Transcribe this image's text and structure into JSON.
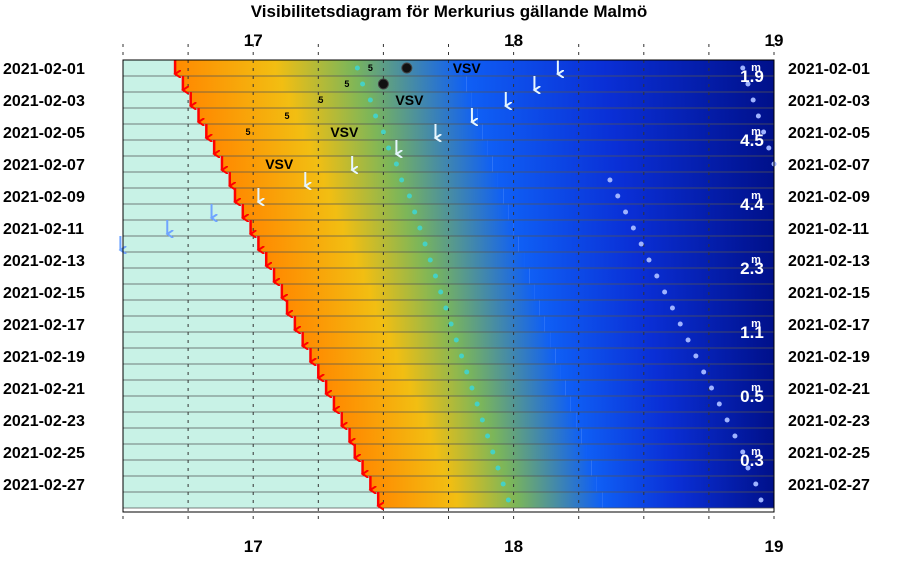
{
  "chart_data": {
    "type": "scatter",
    "title": "Visibilitetsdiagram för Merkurius gällande Malmö",
    "x_ticks": [
      "17",
      "18",
      "19"
    ],
    "x_range": [
      16.5,
      19.0
    ],
    "dates": [
      "2021-02-01",
      "2021-02-02",
      "2021-02-03",
      "2021-02-04",
      "2021-02-05",
      "2021-02-06",
      "2021-02-07",
      "2021-02-08",
      "2021-02-09",
      "2021-02-10",
      "2021-02-11",
      "2021-02-12",
      "2021-02-13",
      "2021-02-14",
      "2021-02-15",
      "2021-02-16",
      "2021-02-17",
      "2021-02-18",
      "2021-02-19",
      "2021-02-20",
      "2021-02-21",
      "2021-02-22",
      "2021-02-23",
      "2021-02-24",
      "2021-02-25",
      "2021-02-26",
      "2021-02-27",
      "2021-02-28"
    ],
    "date_labels": [
      "2021-02-01",
      "2021-02-03",
      "2021-02-05",
      "2021-02-07",
      "2021-02-09",
      "2021-02-11",
      "2021-02-13",
      "2021-02-15",
      "2021-02-17",
      "2021-02-19",
      "2021-02-21",
      "2021-02-23",
      "2021-02-25",
      "2021-02-27"
    ],
    "sunset": [
      16.7,
      16.73,
      16.76,
      16.79,
      16.82,
      16.85,
      16.88,
      16.91,
      16.93,
      16.96,
      16.99,
      17.02,
      17.05,
      17.08,
      17.11,
      17.13,
      17.16,
      17.19,
      17.22,
      17.25,
      17.28,
      17.31,
      17.34,
      17.37,
      17.39,
      17.42,
      17.45,
      17.48
    ],
    "dusk": [
      17.8,
      17.82,
      17.84,
      17.86,
      17.88,
      17.9,
      17.92,
      17.94,
      17.96,
      17.98,
      18.0,
      18.02,
      18.04,
      18.06,
      18.08,
      18.1,
      18.12,
      18.14,
      18.16,
      18.18,
      18.2,
      18.22,
      18.24,
      18.26,
      18.28,
      18.3,
      18.32,
      18.34
    ],
    "night": [
      18.33,
      18.35,
      18.37,
      18.39,
      18.41,
      18.43,
      18.45,
      18.47,
      18.49,
      18.51,
      18.53,
      18.55,
      18.57,
      18.59,
      18.61,
      18.63,
      18.65,
      18.67,
      18.69,
      18.71,
      18.73,
      18.75,
      18.77,
      18.79,
      18.81,
      18.83,
      18.85,
      18.87
    ],
    "inner_dots": [
      17.4,
      17.42,
      17.45,
      17.47,
      17.5,
      17.52,
      17.55,
      17.57,
      17.6,
      17.62,
      17.64,
      17.66,
      17.68,
      17.7,
      17.72,
      17.74,
      17.76,
      17.78,
      17.8,
      17.82,
      17.84,
      17.86,
      17.88,
      17.9,
      17.92,
      17.94,
      17.96,
      17.98
    ],
    "outer_dots": [
      18.88,
      18.9,
      18.92,
      18.94,
      18.96,
      18.98,
      19.0,
      18.37,
      18.4,
      18.43,
      18.46,
      18.49,
      18.52,
      18.55,
      18.58,
      18.61,
      18.64,
      18.67,
      18.7,
      18.73,
      18.76,
      18.79,
      18.82,
      18.85,
      18.88,
      18.9,
      18.93,
      18.95
    ],
    "mercury_set_arrows": [
      {
        "day": 0,
        "x": 18.17
      },
      {
        "day": 1,
        "x": 18.08
      },
      {
        "day": 2,
        "x": 17.97
      },
      {
        "day": 3,
        "x": 17.84
      },
      {
        "day": 4,
        "x": 17.7
      },
      {
        "day": 5,
        "x": 17.55
      },
      {
        "day": 6,
        "x": 17.38
      },
      {
        "day": 7,
        "x": 17.2
      },
      {
        "day": 8,
        "x": 17.02
      },
      {
        "day": 9,
        "x": 16.84
      },
      {
        "day": 10,
        "x": 16.67
      },
      {
        "day": 11,
        "x": 16.49
      }
    ],
    "direction_labels": [
      {
        "day": 0,
        "x": 17.82,
        "text": "VSV"
      },
      {
        "day": 2,
        "x": 17.6,
        "text": "VSV"
      },
      {
        "day": 4,
        "x": 17.35,
        "text": "VSV"
      },
      {
        "day": 6,
        "x": 17.1,
        "text": "VSV"
      }
    ],
    "altitude_labels": [
      {
        "day": 0,
        "x": 17.45,
        "text": "5"
      },
      {
        "day": 1,
        "x": 17.36,
        "text": "5"
      },
      {
        "day": 2,
        "x": 17.26,
        "text": "5"
      },
      {
        "day": 3,
        "x": 17.13,
        "text": "5"
      },
      {
        "day": 4,
        "x": 16.98,
        "text": "5"
      }
    ],
    "big_dots": [
      {
        "day": 0,
        "x": 17.59
      },
      {
        "day": 1,
        "x": 17.5
      }
    ],
    "magnitudes": [
      {
        "day": 0.5,
        "value": "1.9"
      },
      {
        "day": 4.5,
        "value": "4.5"
      },
      {
        "day": 8.5,
        "value": "4.4"
      },
      {
        "day": 12.5,
        "value": "2.3"
      },
      {
        "day": 16.5,
        "value": "1.1"
      },
      {
        "day": 20.5,
        "value": "0.5"
      },
      {
        "day": 24.5,
        "value": "0.3"
      }
    ],
    "magnitude_unit": "m",
    "colors": {
      "daylight": "#c8f2e6",
      "sunset_arrow": "#ff0000",
      "twilight_orange": "#ff8a00",
      "twilight_yellow": "#f2be12",
      "twilight_green": "#7bb65a",
      "dusk_blue": "#0f5ff5",
      "night_blue": "#00108a",
      "mercury_arrow": "#e6f6ff",
      "inner_dot": "#46d1c4",
      "outer_dot": "#9fb3ff"
    }
  }
}
